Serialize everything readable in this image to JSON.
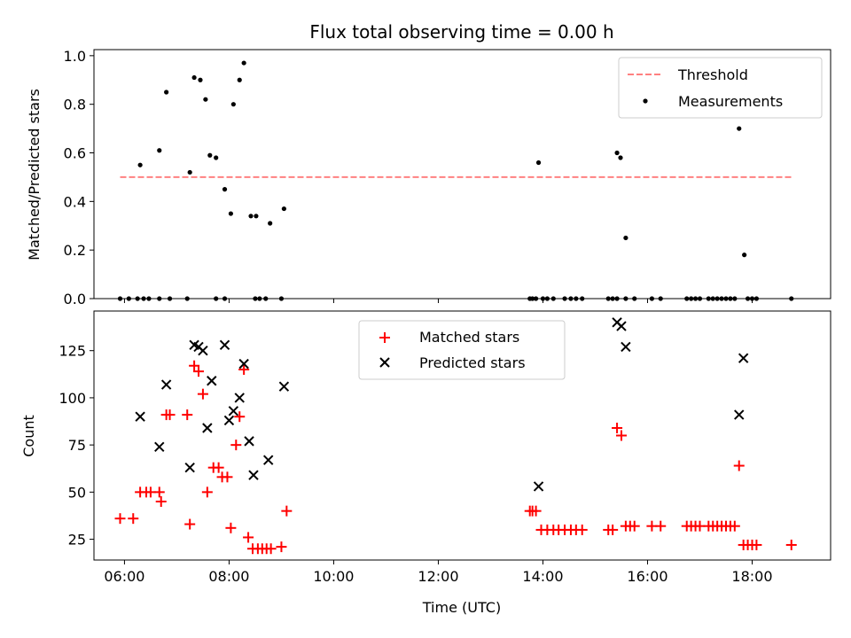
{
  "chart_data": [
    {
      "type": "scatter",
      "title": "Flux total observing time = 0.00 h",
      "xlabel": "",
      "ylabel": "Matched/Predicted stars",
      "ylim": [
        0,
        1.025
      ],
      "xlim": [
        "05:25",
        "19:30"
      ],
      "x_ticks": [
        "06:00",
        "08:00",
        "10:00",
        "12:00",
        "14:00",
        "16:00",
        "18:00"
      ],
      "y_ticks": [
        "0.0",
        "0.2",
        "0.4",
        "0.6",
        "0.8",
        "1.0"
      ],
      "threshold": {
        "name": "Threshold",
        "value": 0.5,
        "x_range": [
          "05:55",
          "18:45"
        ],
        "color": "#ff8080",
        "style": "dashed"
      },
      "series": [
        {
          "name": "Measurements",
          "marker": "dot",
          "color": "#000000",
          "points": [
            [
              "06:18",
              0.55
            ],
            [
              "06:40",
              0.61
            ],
            [
              "06:48",
              0.85
            ],
            [
              "07:15",
              0.52
            ],
            [
              "07:20",
              0.91
            ],
            [
              "07:27",
              0.9
            ],
            [
              "07:33",
              0.82
            ],
            [
              "07:38",
              0.59
            ],
            [
              "07:45",
              0.58
            ],
            [
              "07:55",
              0.45
            ],
            [
              "08:02",
              0.35
            ],
            [
              "08:05",
              0.8
            ],
            [
              "08:12",
              0.9
            ],
            [
              "08:17",
              0.97
            ],
            [
              "08:25",
              0.34
            ],
            [
              "08:31",
              0.34
            ],
            [
              "08:47",
              0.31
            ],
            [
              "09:03",
              0.37
            ],
            [
              "13:55",
              0.56
            ],
            [
              "15:25",
              0.6
            ],
            [
              "15:29",
              0.58
            ],
            [
              "15:35",
              0.25
            ],
            [
              "17:45",
              0.7
            ],
            [
              "17:51",
              0.18
            ],
            [
              "05:55",
              0.0
            ],
            [
              "06:05",
              0.0
            ],
            [
              "06:15",
              0.0
            ],
            [
              "06:22",
              0.0
            ],
            [
              "06:28",
              0.0
            ],
            [
              "06:40",
              0.0
            ],
            [
              "06:52",
              0.0
            ],
            [
              "07:12",
              0.0
            ],
            [
              "07:45",
              0.0
            ],
            [
              "07:55",
              0.0
            ],
            [
              "08:30",
              0.0
            ],
            [
              "08:35",
              0.0
            ],
            [
              "08:42",
              0.0
            ],
            [
              "09:00",
              0.0
            ],
            [
              "13:45",
              0.0
            ],
            [
              "13:48",
              0.0
            ],
            [
              "13:52",
              0.0
            ],
            [
              "14:00",
              0.0
            ],
            [
              "14:05",
              0.0
            ],
            [
              "14:12",
              0.0
            ],
            [
              "14:25",
              0.0
            ],
            [
              "14:32",
              0.0
            ],
            [
              "14:38",
              0.0
            ],
            [
              "14:45",
              0.0
            ],
            [
              "15:15",
              0.0
            ],
            [
              "15:20",
              0.0
            ],
            [
              "15:25",
              0.0
            ],
            [
              "15:35",
              0.0
            ],
            [
              "15:45",
              0.0
            ],
            [
              "16:05",
              0.0
            ],
            [
              "16:15",
              0.0
            ],
            [
              "16:45",
              0.0
            ],
            [
              "16:50",
              0.0
            ],
            [
              "16:55",
              0.0
            ],
            [
              "17:00",
              0.0
            ],
            [
              "17:10",
              0.0
            ],
            [
              "17:15",
              0.0
            ],
            [
              "17:20",
              0.0
            ],
            [
              "17:25",
              0.0
            ],
            [
              "17:30",
              0.0
            ],
            [
              "17:35",
              0.0
            ],
            [
              "17:40",
              0.0
            ],
            [
              "17:55",
              0.0
            ],
            [
              "18:00",
              0.0
            ],
            [
              "18:05",
              0.0
            ],
            [
              "18:45",
              0.0
            ]
          ]
        }
      ],
      "legend": {
        "placement": "upper right",
        "entries": [
          "Threshold",
          "Measurements"
        ]
      }
    },
    {
      "type": "scatter",
      "title": "",
      "xlabel": "Time (UTC)",
      "ylabel": "Count",
      "ylim": [
        14,
        146
      ],
      "xlim": [
        "05:25",
        "19:30"
      ],
      "x_ticks": [
        "06:00",
        "08:00",
        "10:00",
        "12:00",
        "14:00",
        "16:00",
        "18:00"
      ],
      "y_ticks": [
        "25",
        "50",
        "75",
        "100",
        "125"
      ],
      "series": [
        {
          "name": "Matched stars",
          "marker": "plus",
          "color": "#ff0000",
          "points": [
            [
              "05:55",
              36
            ],
            [
              "06:10",
              36
            ],
            [
              "06:18",
              50
            ],
            [
              "06:25",
              50
            ],
            [
              "06:30",
              50
            ],
            [
              "06:40",
              50
            ],
            [
              "06:42",
              45
            ],
            [
              "06:48",
              91
            ],
            [
              "06:52",
              91
            ],
            [
              "07:12",
              91
            ],
            [
              "07:15",
              33
            ],
            [
              "07:20",
              117
            ],
            [
              "07:25",
              114
            ],
            [
              "07:30",
              102
            ],
            [
              "07:35",
              50
            ],
            [
              "07:42",
              63
            ],
            [
              "07:48",
              63
            ],
            [
              "07:52",
              58
            ],
            [
              "07:58",
              58
            ],
            [
              "08:02",
              31
            ],
            [
              "08:08",
              75
            ],
            [
              "08:12",
              90
            ],
            [
              "08:17",
              115
            ],
            [
              "08:22",
              26
            ],
            [
              "08:27",
              20
            ],
            [
              "08:33",
              20
            ],
            [
              "08:38",
              20
            ],
            [
              "08:43",
              20
            ],
            [
              "08:48",
              20
            ],
            [
              "09:00",
              21
            ],
            [
              "09:06",
              40
            ],
            [
              "13:45",
              40
            ],
            [
              "13:48",
              40
            ],
            [
              "13:52",
              40
            ],
            [
              "13:58",
              30
            ],
            [
              "14:05",
              30
            ],
            [
              "14:12",
              30
            ],
            [
              "14:18",
              30
            ],
            [
              "14:25",
              30
            ],
            [
              "14:32",
              30
            ],
            [
              "14:38",
              30
            ],
            [
              "14:45",
              30
            ],
            [
              "15:15",
              30
            ],
            [
              "15:20",
              30
            ],
            [
              "15:25",
              84
            ],
            [
              "15:30",
              80
            ],
            [
              "15:35",
              32
            ],
            [
              "15:40",
              32
            ],
            [
              "15:45",
              32
            ],
            [
              "16:05",
              32
            ],
            [
              "16:15",
              32
            ],
            [
              "16:45",
              32
            ],
            [
              "16:50",
              32
            ],
            [
              "16:55",
              32
            ],
            [
              "17:00",
              32
            ],
            [
              "17:10",
              32
            ],
            [
              "17:15",
              32
            ],
            [
              "17:20",
              32
            ],
            [
              "17:25",
              32
            ],
            [
              "17:30",
              32
            ],
            [
              "17:35",
              32
            ],
            [
              "17:40",
              32
            ],
            [
              "17:45",
              64
            ],
            [
              "17:50",
              22
            ],
            [
              "17:55",
              22
            ],
            [
              "18:00",
              22
            ],
            [
              "18:05",
              22
            ],
            [
              "18:45",
              22
            ]
          ]
        },
        {
          "name": "Predicted stars",
          "marker": "x",
          "color": "#000000",
          "points": [
            [
              "06:18",
              90
            ],
            [
              "06:40",
              74
            ],
            [
              "06:48",
              107
            ],
            [
              "07:15",
              63
            ],
            [
              "07:20",
              128
            ],
            [
              "07:25",
              127
            ],
            [
              "07:30",
              125
            ],
            [
              "07:35",
              84
            ],
            [
              "07:40",
              109
            ],
            [
              "07:55",
              128
            ],
            [
              "08:00",
              88
            ],
            [
              "08:05",
              93
            ],
            [
              "08:12",
              100
            ],
            [
              "08:17",
              118
            ],
            [
              "08:23",
              77
            ],
            [
              "08:28",
              59
            ],
            [
              "08:45",
              67
            ],
            [
              "09:03",
              106
            ],
            [
              "13:55",
              53
            ],
            [
              "15:25",
              140
            ],
            [
              "15:30",
              138
            ],
            [
              "15:35",
              127
            ],
            [
              "17:45",
              91
            ],
            [
              "17:50",
              121
            ]
          ]
        }
      ],
      "legend": {
        "placement": "upper center",
        "entries": [
          "Matched stars",
          "Predicted stars"
        ]
      }
    }
  ]
}
